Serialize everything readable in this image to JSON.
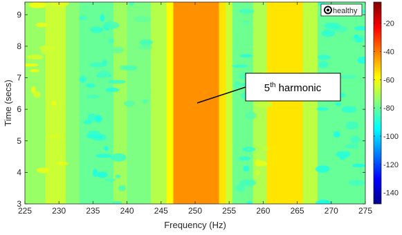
{
  "chart_data": {
    "type": "heatmap",
    "xlabel": "Frequency (Hz)",
    "ylabel": "Time (secs)",
    "xlim": [
      225,
      275
    ],
    "ylim": [
      3,
      9.4
    ],
    "xticks": [
      225,
      230,
      235,
      240,
      245,
      250,
      255,
      260,
      265,
      270,
      275
    ],
    "yticks": [
      3,
      4,
      5,
      6,
      7,
      8,
      9
    ],
    "colorbar": {
      "limits": [
        -148,
        -5
      ],
      "ticks": [
        -20,
        -40,
        -60,
        -80,
        -100,
        -120,
        -140
      ],
      "colormap": "jet"
    },
    "legend": {
      "label": "healthy",
      "position": "top-right"
    },
    "annotation": {
      "base": "5",
      "superscript": "th",
      "rest": " harmonic",
      "target": [
        250.3,
        6.2
      ]
    },
    "spectral_bands": [
      {
        "from": 225,
        "to": 228,
        "level": -73
      },
      {
        "from": 228,
        "to": 231,
        "level": -66
      },
      {
        "from": 231,
        "to": 233,
        "level": -75
      },
      {
        "from": 233,
        "to": 238,
        "level": -80
      },
      {
        "from": 238,
        "to": 240,
        "level": -72
      },
      {
        "from": 240,
        "to": 243.5,
        "level": -77
      },
      {
        "from": 243.5,
        "to": 245.8,
        "level": -69
      },
      {
        "from": 245.8,
        "to": 246.8,
        "level": -58
      },
      {
        "from": 246.8,
        "to": 253.5,
        "level": -43
      },
      {
        "from": 253.5,
        "to": 254.5,
        "level": -55
      },
      {
        "from": 254.5,
        "to": 255.5,
        "level": -66
      },
      {
        "from": 255.5,
        "to": 258.5,
        "level": -79
      },
      {
        "from": 258.5,
        "to": 260.5,
        "level": -70
      },
      {
        "from": 260.5,
        "to": 265.8,
        "level": -55
      },
      {
        "from": 265.8,
        "to": 268,
        "level": -68
      },
      {
        "from": 268,
        "to": 275,
        "level": -80
      }
    ],
    "colors": {
      "axis": "#262626",
      "callout_line": "#000000"
    }
  }
}
